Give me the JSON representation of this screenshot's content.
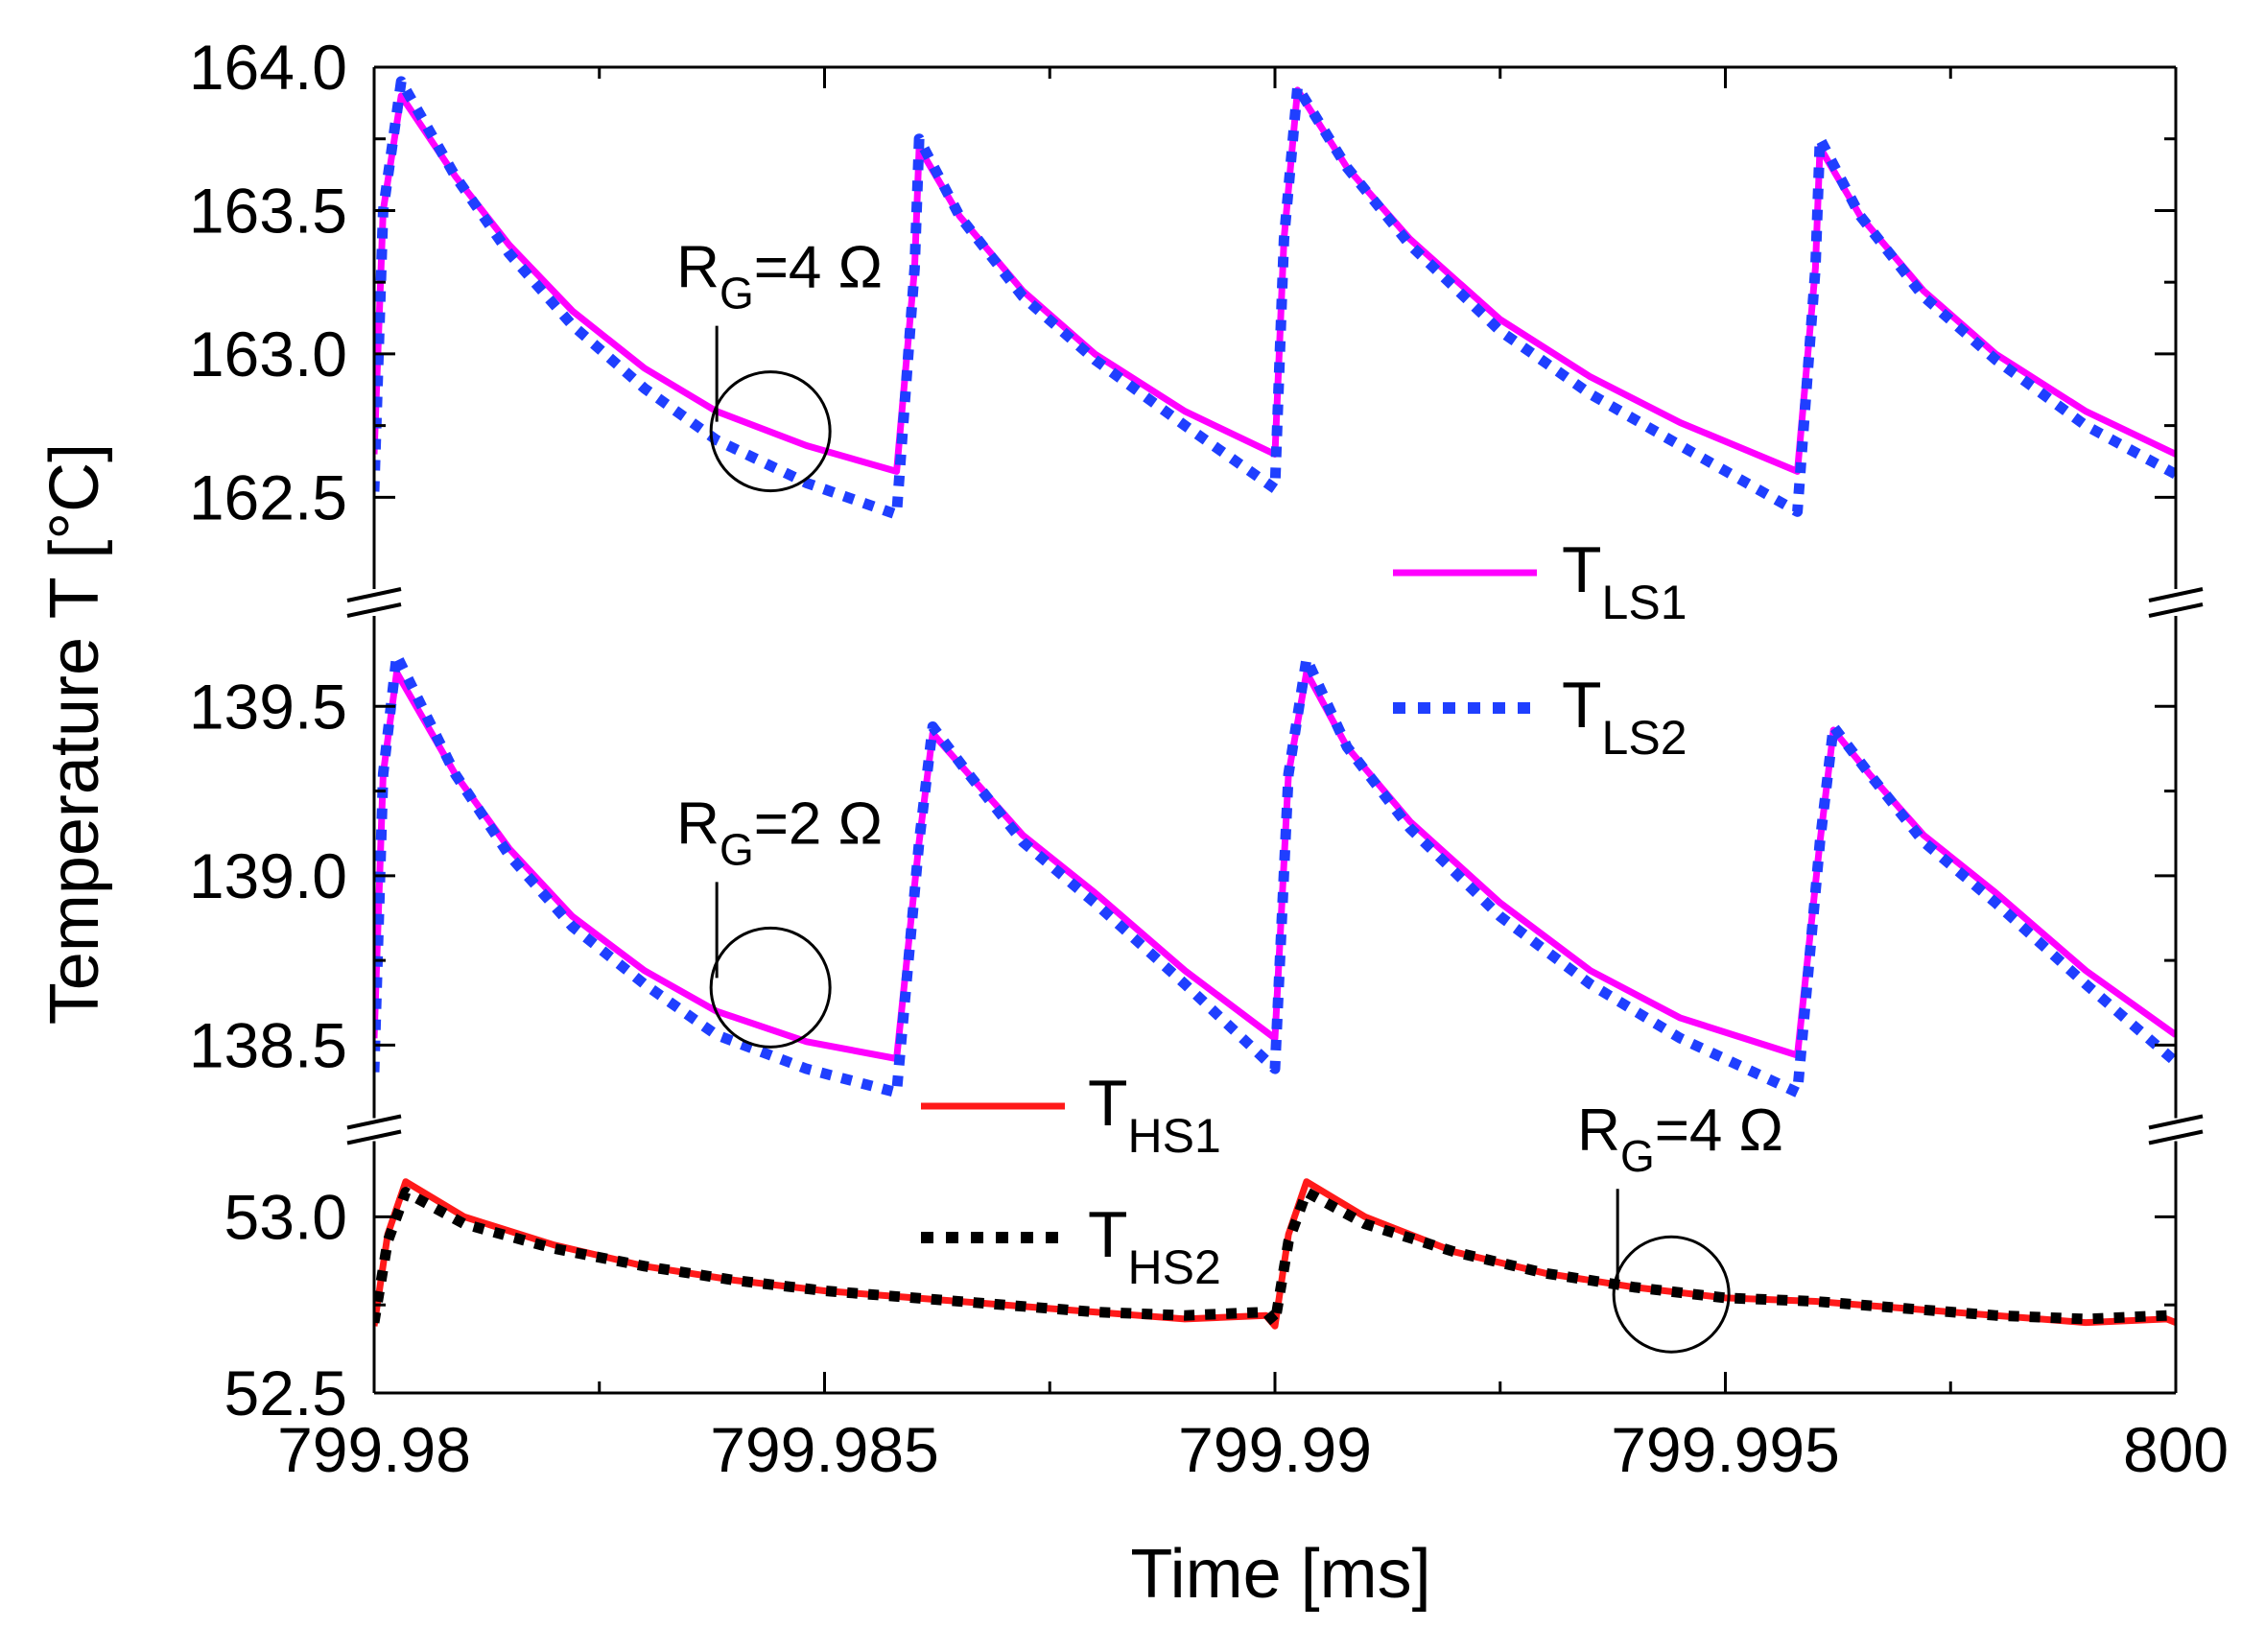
{
  "chart_data": {
    "type": "line",
    "title": "",
    "xlabel": "Time [ms]",
    "ylabel": "Temperature T [°C]",
    "xlim": [
      799.98,
      800.0
    ],
    "x_ticks": [
      799.98,
      799.985,
      799.99,
      799.995,
      800.0
    ],
    "x_tick_labels": [
      "799.98",
      "799.985",
      "799.99",
      "799.995",
      "800"
    ],
    "grid": false,
    "y_axis_break": true,
    "panels": [
      {
        "name": "upper",
        "ylim": [
          162.2,
          164.0
        ],
        "y_ticks": [
          162.5,
          163.0,
          163.5,
          164.0
        ],
        "y_tick_labels": [
          "162.5",
          "163.0",
          "163.5",
          "164.0"
        ],
        "series": [
          {
            "name": "T_LS1",
            "color": "#ff00ff",
            "style": "solid",
            "x": [
              799.98,
              799.9801,
              799.9803,
              799.9809,
              799.9815,
              799.9822,
              799.983,
              799.9838,
              799.9848,
              799.9858,
              799.986,
              799.98605,
              799.9865,
              799.9872,
              799.988,
              799.989,
              799.99,
              799.9901,
              799.99025,
              799.9908,
              799.9915,
              799.9925,
              799.9935,
              799.9945,
              799.9958,
              799.996,
              799.99605,
              799.9965,
              799.9972,
              799.998,
              799.999,
              800.0
            ],
            "y": [
              162.65,
              163.5,
              163.9,
              163.62,
              163.38,
              163.15,
              162.95,
              162.8,
              162.68,
              162.59,
              163.3,
              163.72,
              163.48,
              163.22,
              163.0,
              162.8,
              162.65,
              163.4,
              163.92,
              163.65,
              163.4,
              163.12,
              162.92,
              162.76,
              162.59,
              163.3,
              163.72,
              163.48,
              163.22,
              163.0,
              162.8,
              162.65
            ]
          },
          {
            "name": "T_LS2",
            "color": "#1f3fff",
            "style": "dotted",
            "x": [
              799.98,
              799.9801,
              799.9803,
              799.9809,
              799.9815,
              799.9822,
              799.983,
              799.9838,
              799.9848,
              799.9858,
              799.986,
              799.98605,
              799.9865,
              799.9872,
              799.988,
              799.989,
              799.99,
              799.9901,
              799.99025,
              799.9908,
              799.9915,
              799.9925,
              799.9935,
              799.9945,
              799.9958,
              799.996,
              799.99605,
              799.9965,
              799.9972,
              799.998,
              799.999,
              800.0
            ],
            "y": [
              162.52,
              163.5,
              163.95,
              163.62,
              163.35,
              163.1,
              162.88,
              162.7,
              162.55,
              162.44,
              163.3,
              163.75,
              163.48,
              163.2,
              162.98,
              162.75,
              162.53,
              163.4,
              163.93,
              163.65,
              163.38,
              163.08,
              162.86,
              162.68,
              162.45,
              163.3,
              163.75,
              163.48,
              163.2,
              162.98,
              162.75,
              162.58
            ]
          }
        ]
      },
      {
        "name": "middle",
        "ylim": [
          138.3,
          139.75
        ],
        "y_ticks": [
          138.5,
          139.0,
          139.5
        ],
        "y_tick_labels": [
          "138.5",
          "139.0",
          "139.5"
        ],
        "series": [
          {
            "name": "T_LS1",
            "color": "#ff00ff",
            "style": "solid",
            "x": [
              799.98,
              799.9801,
              799.98025,
              799.9809,
              799.9815,
              799.9822,
              799.983,
              799.9838,
              799.9848,
              799.9858,
              799.98605,
              799.9862,
              799.9866,
              799.9872,
              799.988,
              799.989,
              799.99,
              799.99015,
              799.99035,
              799.9908,
              799.9915,
              799.9925,
              799.9935,
              799.9945,
              799.9958,
              799.99605,
              799.9962,
              799.9966,
              799.9972,
              799.998,
              799.999,
              800.0
            ],
            "y": [
              138.52,
              139.3,
              139.6,
              139.3,
              139.08,
              138.88,
              138.72,
              138.6,
              138.51,
              138.46,
              139.1,
              139.42,
              139.3,
              139.12,
              138.95,
              138.72,
              138.52,
              139.3,
              139.6,
              139.38,
              139.16,
              138.92,
              138.72,
              138.58,
              138.47,
              139.1,
              139.43,
              139.3,
              139.12,
              138.95,
              138.72,
              138.53
            ]
          },
          {
            "name": "T_LS2",
            "color": "#1f3fff",
            "style": "dotted",
            "x": [
              799.98,
              799.9801,
              799.98025,
              799.9809,
              799.9815,
              799.9822,
              799.983,
              799.9838,
              799.9848,
              799.9858,
              799.98605,
              799.9862,
              799.9866,
              799.9872,
              799.988,
              799.989,
              799.99,
              799.99015,
              799.99035,
              799.9908,
              799.9915,
              799.9925,
              799.9935,
              799.9945,
              799.9958,
              799.99605,
              799.9962,
              799.9966,
              799.9972,
              799.998,
              799.999,
              800.0
            ],
            "y": [
              138.42,
              139.3,
              139.65,
              139.3,
              139.06,
              138.85,
              138.68,
              138.53,
              138.43,
              138.36,
              139.1,
              139.44,
              139.3,
              139.1,
              138.92,
              138.68,
              138.43,
              139.3,
              139.64,
              139.38,
              139.14,
              138.88,
              138.68,
              138.52,
              138.36,
              139.1,
              139.44,
              139.3,
              139.1,
              138.92,
              138.68,
              138.45
            ]
          }
        ]
      },
      {
        "name": "lower",
        "ylim": [
          52.5,
          53.2
        ],
        "y_ticks": [
          52.5,
          53.0
        ],
        "y_tick_labels": [
          "52.5",
          "53.0"
        ],
        "series": [
          {
            "name": "T_HS1",
            "color": "#ff1a1a",
            "style": "solid",
            "x": [
              799.98,
              799.98015,
              799.98035,
              799.981,
              799.982,
              799.983,
              799.984,
              799.985,
              799.986,
              799.987,
              799.988,
              799.989,
              799.9899,
              799.99,
              799.99015,
              799.99035,
              799.991,
              799.992,
              799.993,
              799.994,
              799.995,
              799.996,
              799.997,
              799.998,
              799.999,
              799.9999,
              800.0
            ],
            "y": [
              52.69,
              52.95,
              53.1,
              53.0,
              52.92,
              52.86,
              52.82,
              52.79,
              52.77,
              52.75,
              52.73,
              52.71,
              52.72,
              52.69,
              52.95,
              53.1,
              53.0,
              52.9,
              52.84,
              52.8,
              52.77,
              52.76,
              52.74,
              52.72,
              52.7,
              52.71,
              52.7
            ]
          },
          {
            "name": "T_HS2",
            "color": "#000000",
            "style": "dotted",
            "x": [
              799.98,
              799.98015,
              799.98035,
              799.981,
              799.982,
              799.983,
              799.984,
              799.985,
              799.986,
              799.987,
              799.988,
              799.989,
              799.9899,
              799.99,
              799.99015,
              799.99035,
              799.991,
              799.992,
              799.993,
              799.994,
              799.995,
              799.996,
              799.997,
              799.998,
              799.999,
              799.9999,
              800.0
            ],
            "y": [
              52.7,
              52.93,
              53.07,
              52.98,
              52.91,
              52.86,
              52.82,
              52.79,
              52.77,
              52.75,
              52.73,
              52.72,
              52.73,
              52.7,
              52.93,
              53.07,
              52.98,
              52.9,
              52.84,
              52.8,
              52.77,
              52.76,
              52.74,
              52.72,
              52.71,
              52.72,
              52.72
            ]
          }
        ]
      }
    ],
    "legend": [
      {
        "label": "T",
        "sub": "LS1",
        "color": "#ff00ff",
        "style": "solid",
        "location": "upper panel, right of center"
      },
      {
        "label": "T",
        "sub": "LS2",
        "color": "#1f3fff",
        "style": "dotted",
        "location": "upper panel, right of center"
      },
      {
        "label": "T",
        "sub": "HS1",
        "color": "#ff1a1a",
        "style": "solid",
        "location": "lower panel, center"
      },
      {
        "label": "T",
        "sub": "HS2",
        "color": "#000000",
        "style": "dotted",
        "location": "lower panel, center"
      }
    ],
    "annotations": [
      {
        "panel": "upper",
        "main": "R",
        "sub": "G",
        "rest": "=4 Ω",
        "at_x": 799.9844,
        "at_y": 162.73
      },
      {
        "panel": "middle",
        "main": "R",
        "sub": "G",
        "rest": "=2 Ω",
        "at_x": 799.9844,
        "at_y": 138.67
      },
      {
        "panel": "lower",
        "main": "R",
        "sub": "G",
        "rest": "=4 Ω",
        "at_x": 799.9944,
        "at_y": 52.78
      }
    ]
  }
}
